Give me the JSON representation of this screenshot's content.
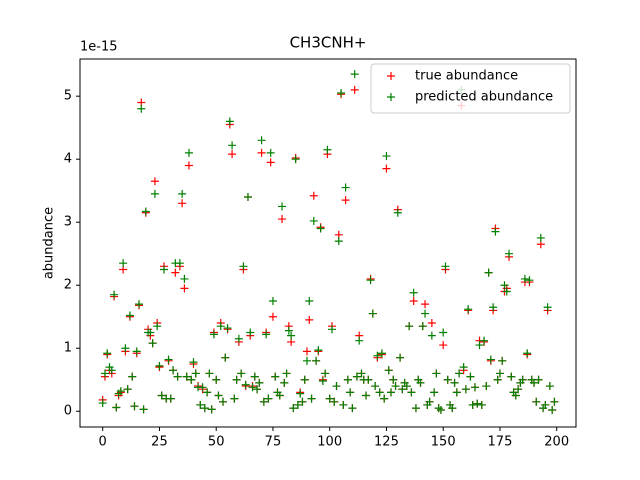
{
  "chart_data": {
    "type": "scatter",
    "title": "CH3CNH+",
    "ylabel": "abundance",
    "y_offset_label": "1e-15",
    "xlim": [
      -10,
      208.5
    ],
    "ylim": [
      -0.25,
      5.59
    ],
    "xticks": [
      0,
      25,
      50,
      75,
      100,
      125,
      150,
      175,
      200
    ],
    "yticks": [
      0,
      1,
      2,
      3,
      4,
      5
    ],
    "legend": "upper right",
    "marker": "+",
    "x": [
      0,
      1,
      2,
      3,
      4,
      5,
      6,
      7,
      8,
      9,
      10,
      11,
      12,
      13,
      14,
      15,
      16,
      17,
      18,
      19,
      20,
      21,
      22,
      23,
      24,
      25,
      26,
      27,
      28,
      29,
      30,
      31,
      32,
      33,
      34,
      35,
      36,
      37,
      38,
      39,
      40,
      41,
      42,
      43,
      44,
      45,
      46,
      47,
      48,
      49,
      50,
      51,
      52,
      53,
      54,
      55,
      56,
      57,
      58,
      59,
      60,
      61,
      62,
      63,
      64,
      65,
      66,
      67,
      68,
      69,
      70,
      71,
      72,
      73,
      74,
      75,
      76,
      77,
      78,
      79,
      80,
      81,
      82,
      83,
      84,
      85,
      86,
      87,
      88,
      89,
      90,
      91,
      92,
      93,
      94,
      95,
      96,
      97,
      98,
      99,
      100,
      101,
      102,
      103,
      104,
      105,
      106,
      107,
      108,
      109,
      110,
      111,
      112,
      113,
      114,
      115,
      116,
      117,
      118,
      119,
      120,
      121,
      122,
      123,
      124,
      125,
      126,
      127,
      128,
      129,
      130,
      131,
      132,
      133,
      134,
      135,
      136,
      137,
      138,
      139,
      140,
      141,
      142,
      143,
      144,
      145,
      146,
      147,
      148,
      149,
      150,
      151,
      152,
      153,
      154,
      155,
      156,
      157,
      158,
      159,
      160,
      161,
      162,
      163,
      164,
      165,
      166,
      167,
      168,
      169,
      170,
      171,
      172,
      173,
      174,
      175,
      176,
      177,
      178,
      179,
      180,
      181,
      182,
      183,
      184,
      185,
      186,
      187,
      188,
      189,
      190,
      191,
      192,
      193,
      194,
      195,
      196,
      197,
      198,
      199
    ],
    "series": [
      {
        "name": "true abundance",
        "color": "#ff0000",
        "values": [
          0.18,
          0.55,
          0.9,
          0.65,
          0.6,
          1.82,
          0.06,
          0.25,
          0.3,
          2.25,
          0.95,
          0.35,
          1.5,
          0.55,
          0.08,
          0.92,
          1.68,
          4.9,
          0.03,
          3.15,
          1.3,
          1.2,
          1.08,
          3.65,
          1.4,
          0.7,
          0.25,
          2.3,
          0.2,
          0.8,
          0.2,
          0.65,
          2.2,
          0.55,
          2.3,
          3.3,
          1.95,
          0.55,
          3.9,
          0.5,
          0.75,
          0.6,
          0.4,
          0.1,
          0.35,
          0.05,
          0.3,
          0.6,
          0.03,
          1.25,
          0.5,
          0.25,
          1.4,
          0.15,
          0.85,
          1.3,
          4.55,
          4.08,
          0.2,
          0.5,
          1.1,
          0.6,
          2.25,
          0.4,
          3.4,
          1.2,
          0.4,
          0.55,
          0.35,
          0.45,
          4.1,
          0.15,
          1.25,
          0.2,
          3.95,
          1.5,
          0.55,
          0.3,
          0.25,
          3.05,
          0.45,
          0.6,
          1.35,
          1.1,
          0.05,
          4.02,
          0.1,
          0.3,
          0.15,
          0.5,
          0.95,
          1.45,
          0.2,
          3.42,
          0.8,
          0.95,
          2.92,
          0.5,
          0.6,
          4.08,
          0.2,
          1.35,
          0.15,
          0.4,
          2.8,
          5.03,
          0.1,
          3.35,
          0.5,
          0.3,
          0.05,
          5.1,
          0.55,
          1.2,
          0.6,
          0.5,
          0.25,
          0.5,
          2.1,
          1.55,
          0.4,
          0.85,
          0.3,
          0.9,
          0.2,
          3.85,
          0.65,
          0.3,
          0.5,
          0.4,
          3.2,
          0.85,
          0.35,
          0.45,
          0.4,
          1.35,
          0.3,
          1.75,
          0.05,
          0.5,
          0.45,
          1.35,
          1.7,
          0.1,
          0.15,
          1.4,
          0.3,
          0.6,
          0.05,
          0.02,
          1.05,
          2.25,
          0.5,
          0.1,
          0.05,
          0.45,
          0.3,
          0.6,
          4.85,
          0.65,
          0.35,
          1.6,
          0.55,
          0.1,
          0.38,
          0.12,
          1.12,
          0.1,
          1.1,
          0.4,
          2.2,
          0.8,
          1.6,
          2.9,
          0.5,
          0.6,
          0.8,
          1.9,
          1.95,
          2.45,
          0.55,
          0.3,
          0.25,
          0.35,
          0.45,
          0.5,
          2.05,
          0.9,
          2.05,
          0.5,
          0.45,
          0.15,
          0.5,
          2.65,
          0.05,
          0.1,
          1.6,
          0.4,
          0.02,
          0.15
        ]
      },
      {
        "name": "predicted abundance",
        "color": "#008000",
        "values": [
          0.13,
          0.6,
          0.92,
          0.7,
          0.65,
          1.85,
          0.06,
          0.28,
          0.32,
          2.35,
          1.0,
          0.35,
          1.52,
          0.55,
          0.08,
          0.95,
          1.7,
          4.8,
          0.03,
          3.17,
          1.25,
          1.25,
          1.08,
          3.45,
          1.35,
          0.72,
          0.25,
          2.25,
          0.2,
          0.82,
          0.2,
          0.65,
          2.35,
          0.55,
          2.35,
          3.45,
          2.1,
          0.55,
          4.1,
          0.5,
          0.78,
          0.6,
          0.38,
          0.1,
          0.38,
          0.05,
          0.3,
          0.6,
          0.03,
          1.22,
          0.5,
          0.25,
          1.35,
          0.15,
          0.85,
          1.32,
          4.6,
          4.22,
          0.2,
          0.5,
          1.15,
          0.6,
          2.3,
          0.42,
          3.4,
          1.25,
          0.38,
          0.55,
          0.35,
          0.45,
          4.3,
          0.15,
          1.22,
          0.2,
          4.1,
          1.75,
          0.55,
          0.3,
          0.25,
          3.25,
          0.45,
          0.6,
          1.28,
          1.2,
          0.05,
          4.0,
          0.1,
          0.28,
          0.15,
          0.5,
          0.8,
          1.75,
          0.2,
          3.02,
          0.8,
          0.97,
          2.9,
          0.48,
          0.6,
          4.15,
          0.2,
          1.3,
          0.15,
          0.4,
          2.7,
          5.05,
          0.1,
          3.55,
          0.5,
          0.3,
          0.05,
          5.35,
          0.55,
          1.12,
          0.6,
          0.5,
          0.25,
          0.5,
          2.08,
          1.55,
          0.4,
          0.88,
          0.3,
          0.92,
          0.2,
          4.05,
          0.65,
          0.3,
          0.5,
          0.4,
          3.15,
          0.85,
          0.35,
          0.45,
          0.4,
          1.35,
          0.3,
          1.88,
          0.05,
          0.5,
          0.45,
          1.35,
          1.55,
          0.1,
          0.15,
          1.2,
          0.3,
          0.6,
          0.05,
          0.02,
          1.25,
          2.3,
          0.5,
          0.1,
          0.05,
          0.45,
          0.3,
          0.6,
          5.1,
          0.7,
          0.35,
          1.62,
          0.55,
          0.1,
          0.38,
          0.12,
          1.05,
          0.1,
          1.12,
          0.4,
          2.2,
          0.82,
          1.65,
          2.85,
          0.5,
          0.6,
          0.8,
          2.0,
          1.9,
          2.5,
          0.55,
          0.3,
          0.25,
          0.35,
          0.45,
          0.5,
          2.1,
          0.92,
          2.08,
          0.5,
          0.45,
          0.15,
          0.5,
          2.75,
          0.05,
          0.1,
          1.65,
          0.4,
          0.02,
          0.15
        ]
      }
    ]
  }
}
